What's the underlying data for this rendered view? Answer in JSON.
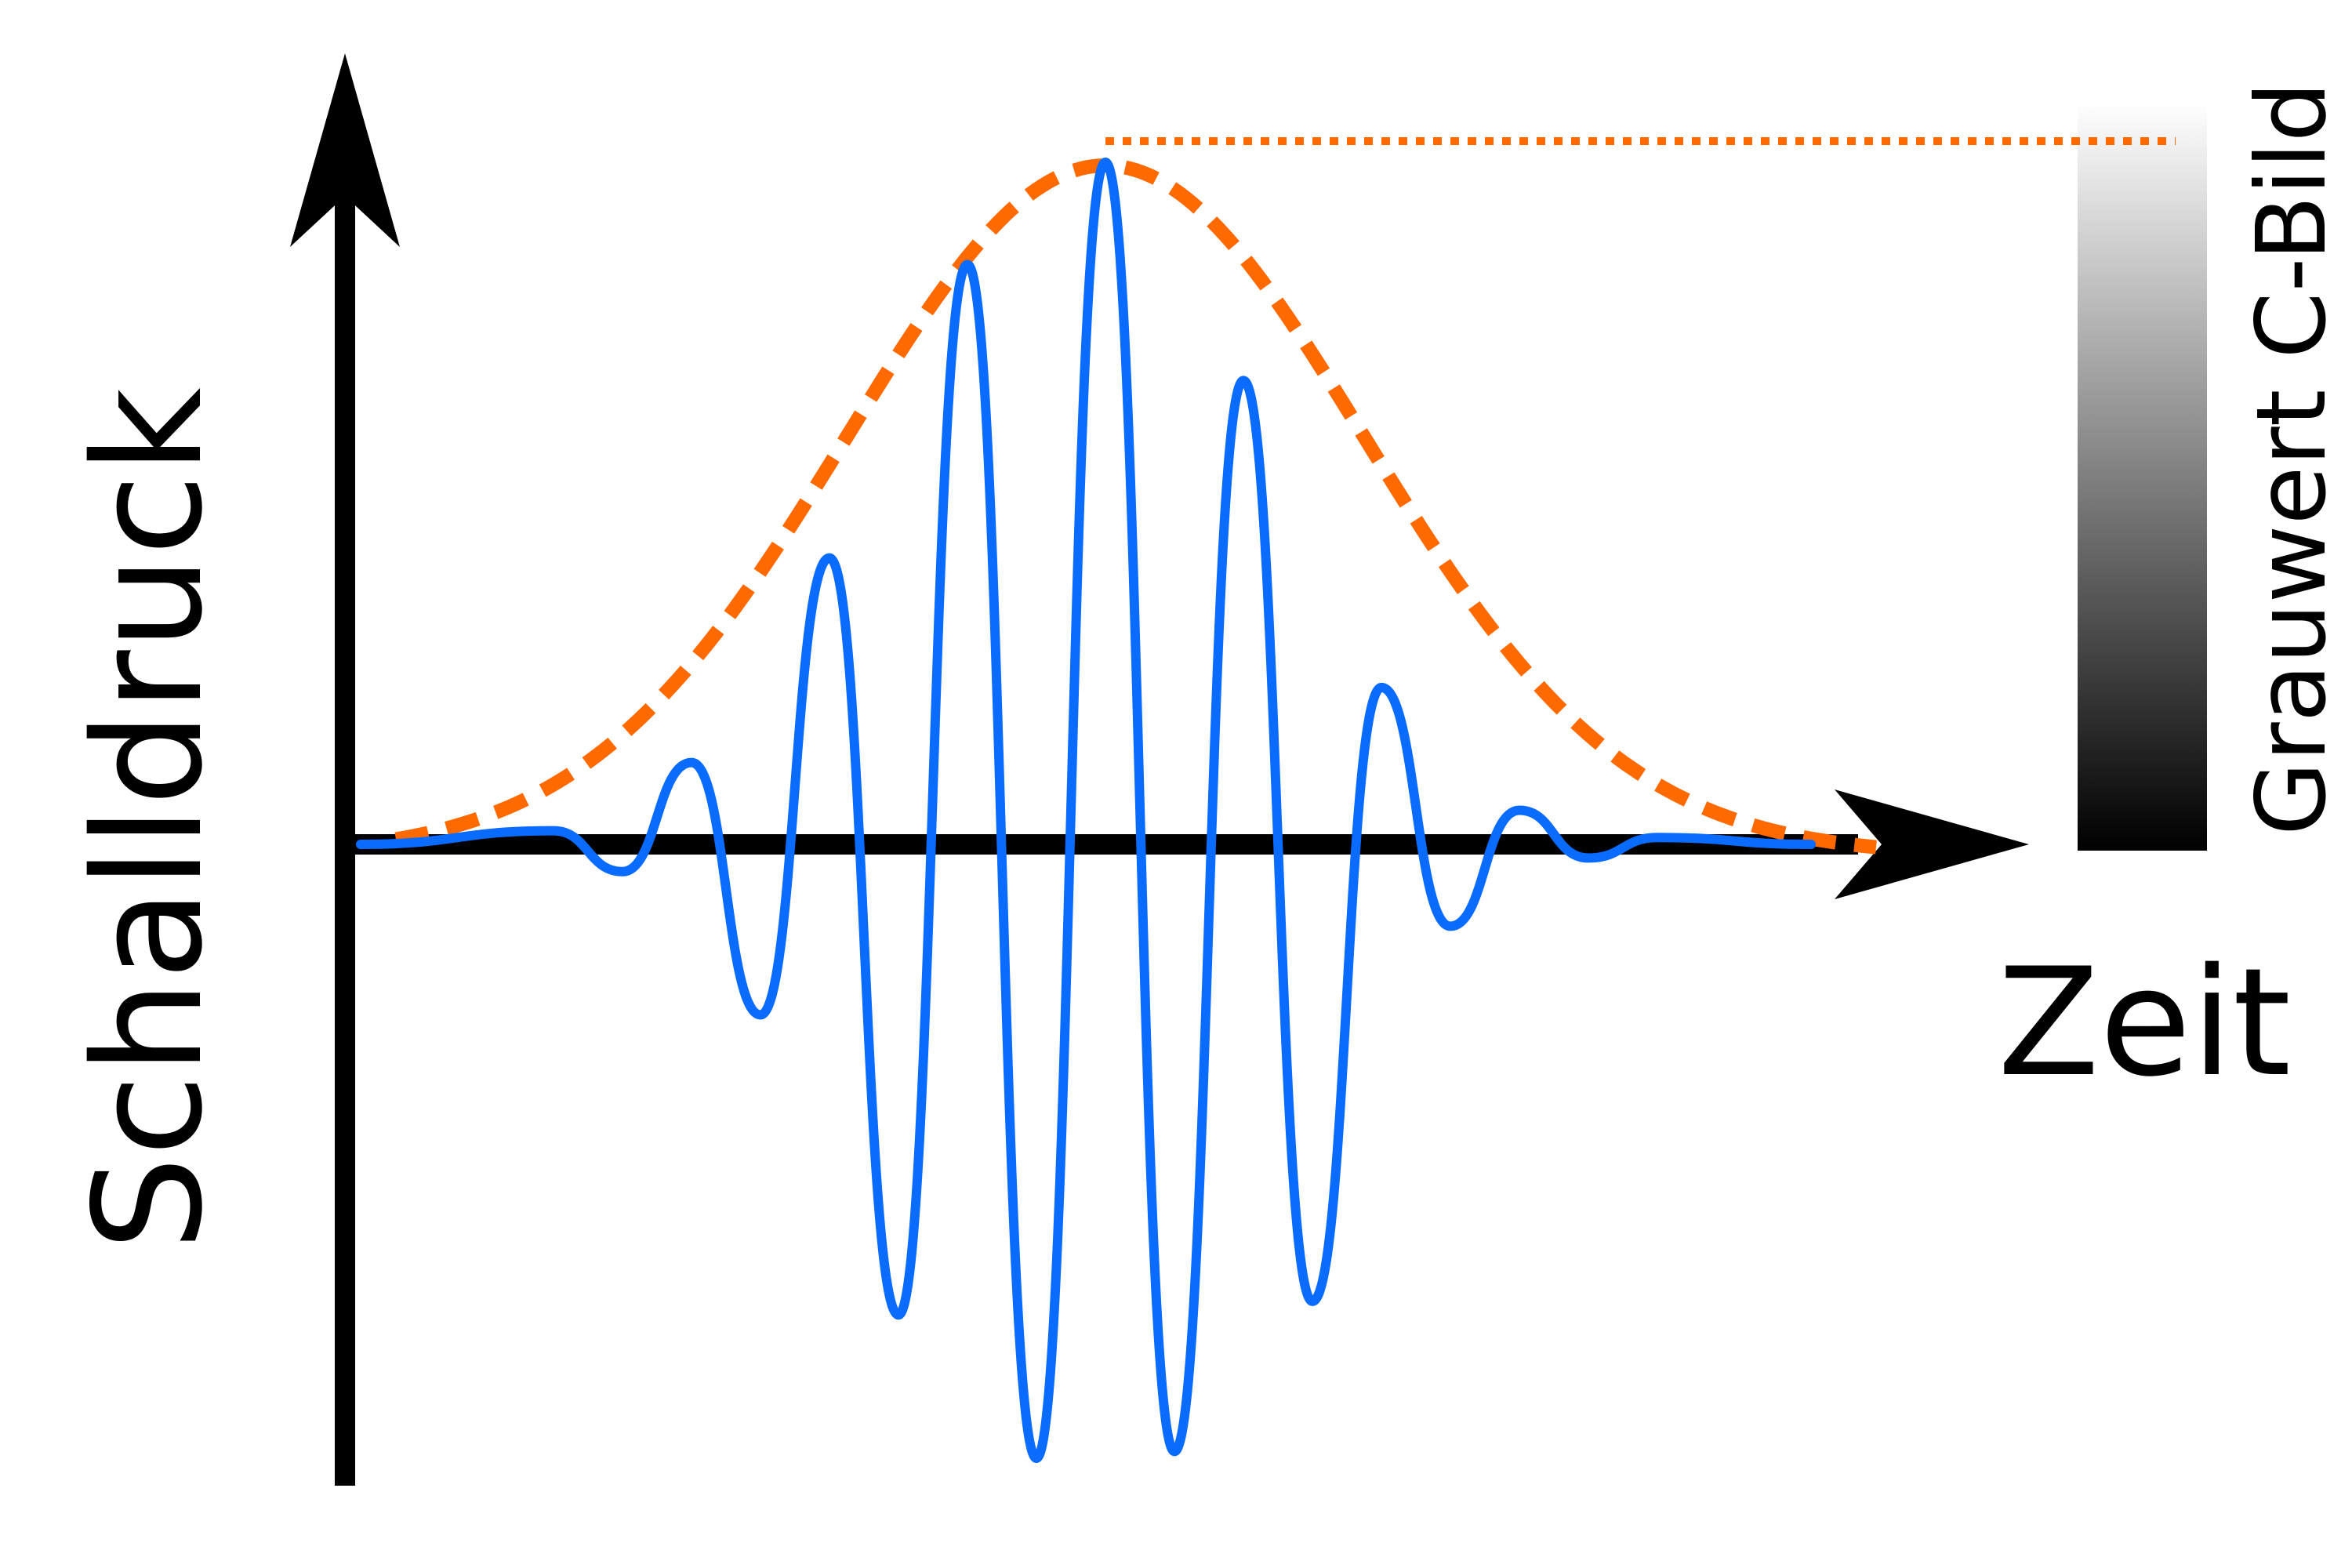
{
  "labels": {
    "y_axis": "Schalldruck",
    "x_axis": "Zeit",
    "grayscale": "Grauwert C-Bild"
  },
  "colors": {
    "signal": "#0a6cff",
    "envelope": "#ff6a00",
    "axis": "#000000",
    "gradient_top": "#ffffff",
    "gradient_bottom": "#000000"
  },
  "series": {
    "signal": {
      "style": "solid",
      "oscillation_extrema_relative_to_peak": [
        0.02,
        -0.04,
        0.12,
        -0.25,
        0.42,
        -0.69,
        0.85,
        -0.9,
        1.0,
        -0.89,
        0.68,
        -0.67,
        0.23,
        -0.12,
        0.05,
        -0.02,
        0.01
      ]
    },
    "envelope": {
      "style": "dashed",
      "shape": "gaussian",
      "peak_level_line": "dotted"
    }
  }
}
